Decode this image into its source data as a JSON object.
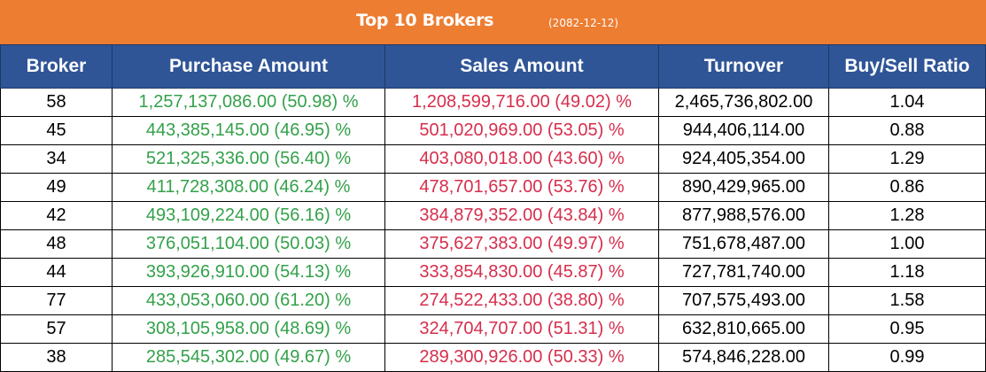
{
  "header": {
    "title": "Top 10 Brokers",
    "date": "(2082-12-12)"
  },
  "colors": {
    "banner": "#ed7d31",
    "header_row": "#2f5597",
    "purchase_text": "#33a14a",
    "sales_text": "#d62e4c"
  },
  "table": {
    "columns": [
      "Broker",
      "Purchase Amount",
      "Sales Amount",
      "Turnover",
      "Buy/Sell Ratio"
    ],
    "rows": [
      {
        "broker": "58",
        "purchase": "1,257,137,086.00 (50.98) %",
        "sales": "1,208,599,716.00 (49.02) %",
        "turnover": "2,465,736,802.00",
        "ratio": "1.04"
      },
      {
        "broker": "45",
        "purchase": "443,385,145.00 (46.95) %",
        "sales": "501,020,969.00 (53.05) %",
        "turnover": "944,406,114.00",
        "ratio": "0.88"
      },
      {
        "broker": "34",
        "purchase": "521,325,336.00 (56.40) %",
        "sales": "403,080,018.00 (43.60) %",
        "turnover": "924,405,354.00",
        "ratio": "1.29"
      },
      {
        "broker": "49",
        "purchase": "411,728,308.00 (46.24) %",
        "sales": "478,701,657.00 (53.76) %",
        "turnover": "890,429,965.00",
        "ratio": "0.86"
      },
      {
        "broker": "42",
        "purchase": "493,109,224.00 (56.16) %",
        "sales": "384,879,352.00 (43.84) %",
        "turnover": "877,988,576.00",
        "ratio": "1.28"
      },
      {
        "broker": "48",
        "purchase": "376,051,104.00 (50.03) %",
        "sales": "375,627,383.00 (49.97) %",
        "turnover": "751,678,487.00",
        "ratio": "1.00"
      },
      {
        "broker": "44",
        "purchase": "393,926,910.00 (54.13) %",
        "sales": "333,854,830.00 (45.87) %",
        "turnover": "727,781,740.00",
        "ratio": "1.18"
      },
      {
        "broker": "77",
        "purchase": "433,053,060.00 (61.20) %",
        "sales": "274,522,433.00 (38.80) %",
        "turnover": "707,575,493.00",
        "ratio": "1.58"
      },
      {
        "broker": "57",
        "purchase": "308,105,958.00 (48.69) %",
        "sales": "324,704,707.00 (51.31) %",
        "turnover": "632,810,665.00",
        "ratio": "0.95"
      },
      {
        "broker": "38",
        "purchase": "285,545,302.00 (49.67) %",
        "sales": "289,300,926.00 (50.33) %",
        "turnover": "574,846,228.00",
        "ratio": "0.99"
      }
    ]
  }
}
